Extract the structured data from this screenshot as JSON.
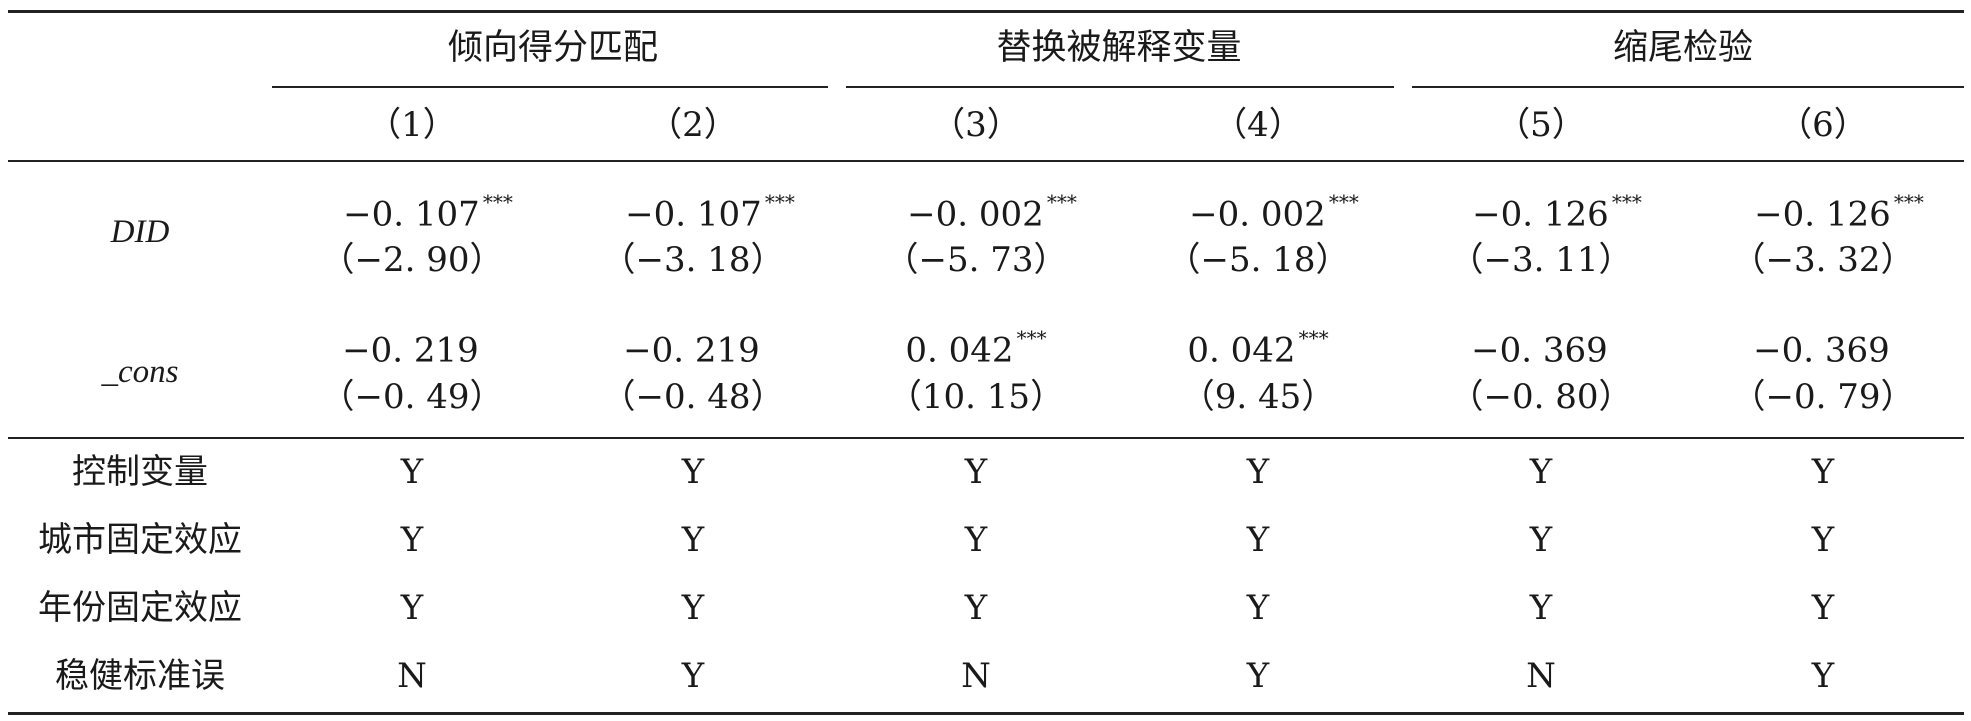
{
  "table": {
    "group_headers": [
      {
        "label": "倾向得分匹配",
        "span": [
          1,
          2
        ]
      },
      {
        "label": "替换被解释变量",
        "span": [
          3,
          4
        ]
      },
      {
        "label": "缩尾检验",
        "span": [
          5,
          6
        ]
      }
    ],
    "col_headers": [
      "（1）",
      "（2）",
      "（3）",
      "（4）",
      "（5）",
      "（6）"
    ],
    "coef_rows": [
      {
        "label": "DID",
        "cells": [
          {
            "coef": "−0. 107",
            "stars": "***",
            "se": "（−2. 90）"
          },
          {
            "coef": "−0. 107",
            "stars": "***",
            "se": "（−3. 18）"
          },
          {
            "coef": "−0. 002",
            "stars": "***",
            "se": "（−5. 73）"
          },
          {
            "coef": "−0. 002",
            "stars": "***",
            "se": "（−5. 18）"
          },
          {
            "coef": "−0. 126",
            "stars": "***",
            "se": "（−3. 11）"
          },
          {
            "coef": "−0. 126",
            "stars": "***",
            "se": "（−3. 32）"
          }
        ]
      },
      {
        "label": "_cons",
        "cells": [
          {
            "coef": "−0. 219",
            "stars": "",
            "se": "（−0. 49）"
          },
          {
            "coef": "−0. 219",
            "stars": "",
            "se": "（−0. 48）"
          },
          {
            "coef": "0. 042",
            "stars": "***",
            "se": "（10. 15）"
          },
          {
            "coef": "0. 042",
            "stars": "***",
            "se": "（9. 45）"
          },
          {
            "coef": "−0. 369",
            "stars": "",
            "se": "（−0. 80）"
          },
          {
            "coef": "−0. 369",
            "stars": "",
            "se": "（−0. 79）"
          }
        ]
      }
    ],
    "indicator_rows": [
      {
        "label": "控制变量",
        "values": [
          "Y",
          "Y",
          "Y",
          "Y",
          "Y",
          "Y"
        ]
      },
      {
        "label": "城市固定效应",
        "values": [
          "Y",
          "Y",
          "Y",
          "Y",
          "Y",
          "Y"
        ]
      },
      {
        "label": "年份固定效应",
        "values": [
          "Y",
          "Y",
          "Y",
          "Y",
          "Y",
          "Y"
        ]
      },
      {
        "label": "稳健标准误",
        "values": [
          "N",
          "Y",
          "N",
          "Y",
          "N",
          "Y"
        ]
      }
    ]
  }
}
